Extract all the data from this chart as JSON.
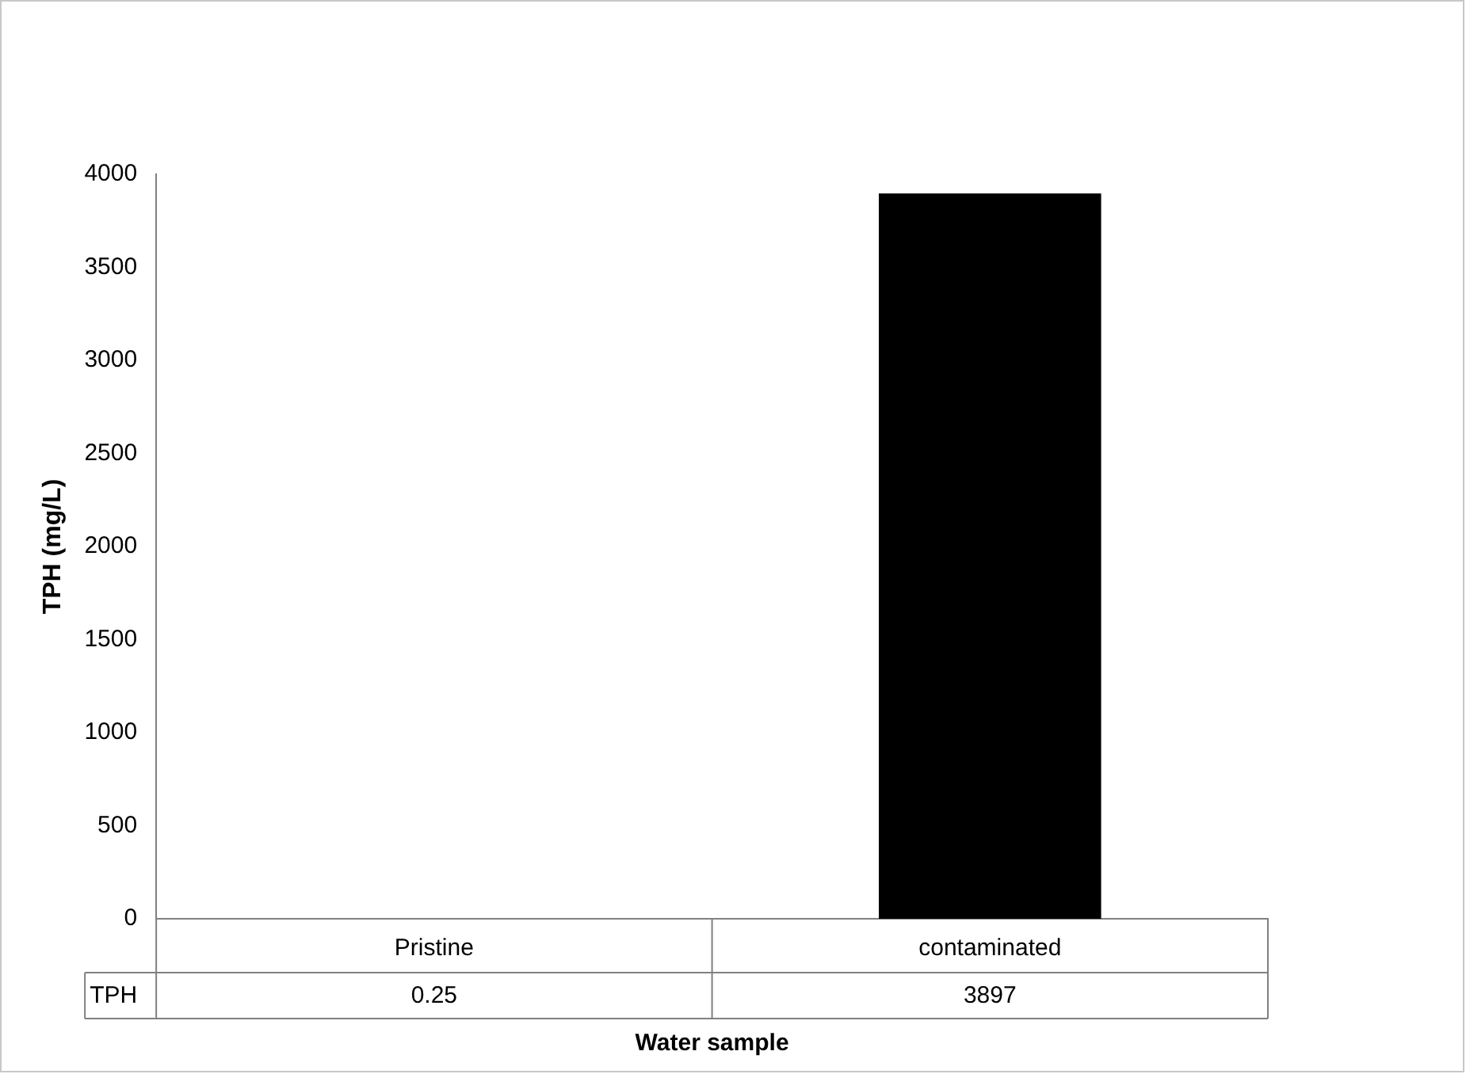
{
  "chart_data": {
    "type": "bar",
    "categories": [
      "Pristine",
      "contaminated"
    ],
    "series": [
      {
        "name": "TPH",
        "color": "#000000",
        "values": [
          0.25,
          3897
        ]
      }
    ],
    "xlabel": "Water sample",
    "ylabel": "TPH (mg/L)",
    "ylim": [
      0,
      4000
    ],
    "yticks": [
      0,
      500,
      1000,
      1500,
      2000,
      2500,
      3000,
      3500,
      4000
    ],
    "data_labels": true,
    "grid": false,
    "legend": false
  }
}
